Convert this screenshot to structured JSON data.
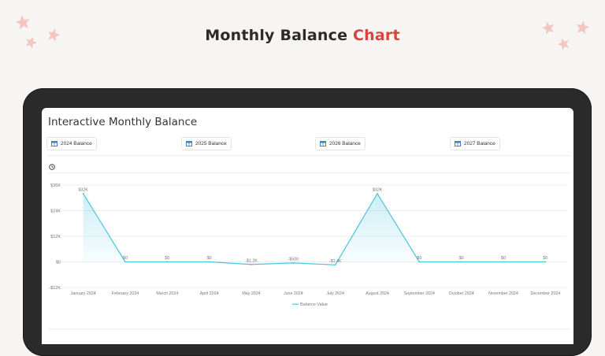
{
  "headline": {
    "main": "Monthly Balance",
    "accent": "Chart"
  },
  "page_title": "Interactive Monthly Balance",
  "tabs": [
    {
      "label": "2024 Balance",
      "icon": "table-icon"
    },
    {
      "label": "2025 Balance",
      "icon": "table-icon"
    },
    {
      "label": "2026 Balance",
      "icon": "table-icon"
    },
    {
      "label": "2027 Balance",
      "icon": "table-icon"
    }
  ],
  "colors": {
    "accent": "#d9443a",
    "line": "#4cc3de",
    "star": "#f2c6c3"
  },
  "chart_data": {
    "type": "area",
    "categories": [
      "January 2024",
      "February 2024",
      "March 2024",
      "April 2024",
      "May 2024",
      "June 2024",
      "July 2024",
      "August 2024",
      "September 2024",
      "October 2024",
      "November 2024",
      "December 2024"
    ],
    "series": [
      {
        "name": "Balance Value",
        "values": [
          32000,
          0,
          0,
          0,
          -1200,
          -500,
          -1400,
          32000,
          0,
          0,
          0,
          0
        ],
        "data_labels": [
          "$32K",
          "$0",
          "$0",
          "$0",
          "-$1.2K",
          "-$500",
          "-$1.4K",
          "$32K",
          "$0",
          "$0",
          "$0",
          "$0"
        ]
      }
    ],
    "y_ticks": [
      36000,
      24000,
      12000,
      0,
      -12000
    ],
    "y_tick_labels": [
      "$36K",
      "$24K",
      "$12K",
      "$0",
      "-$12K"
    ],
    "ylim": [
      -12000,
      36000
    ],
    "grid": true,
    "legend": "bottom"
  }
}
